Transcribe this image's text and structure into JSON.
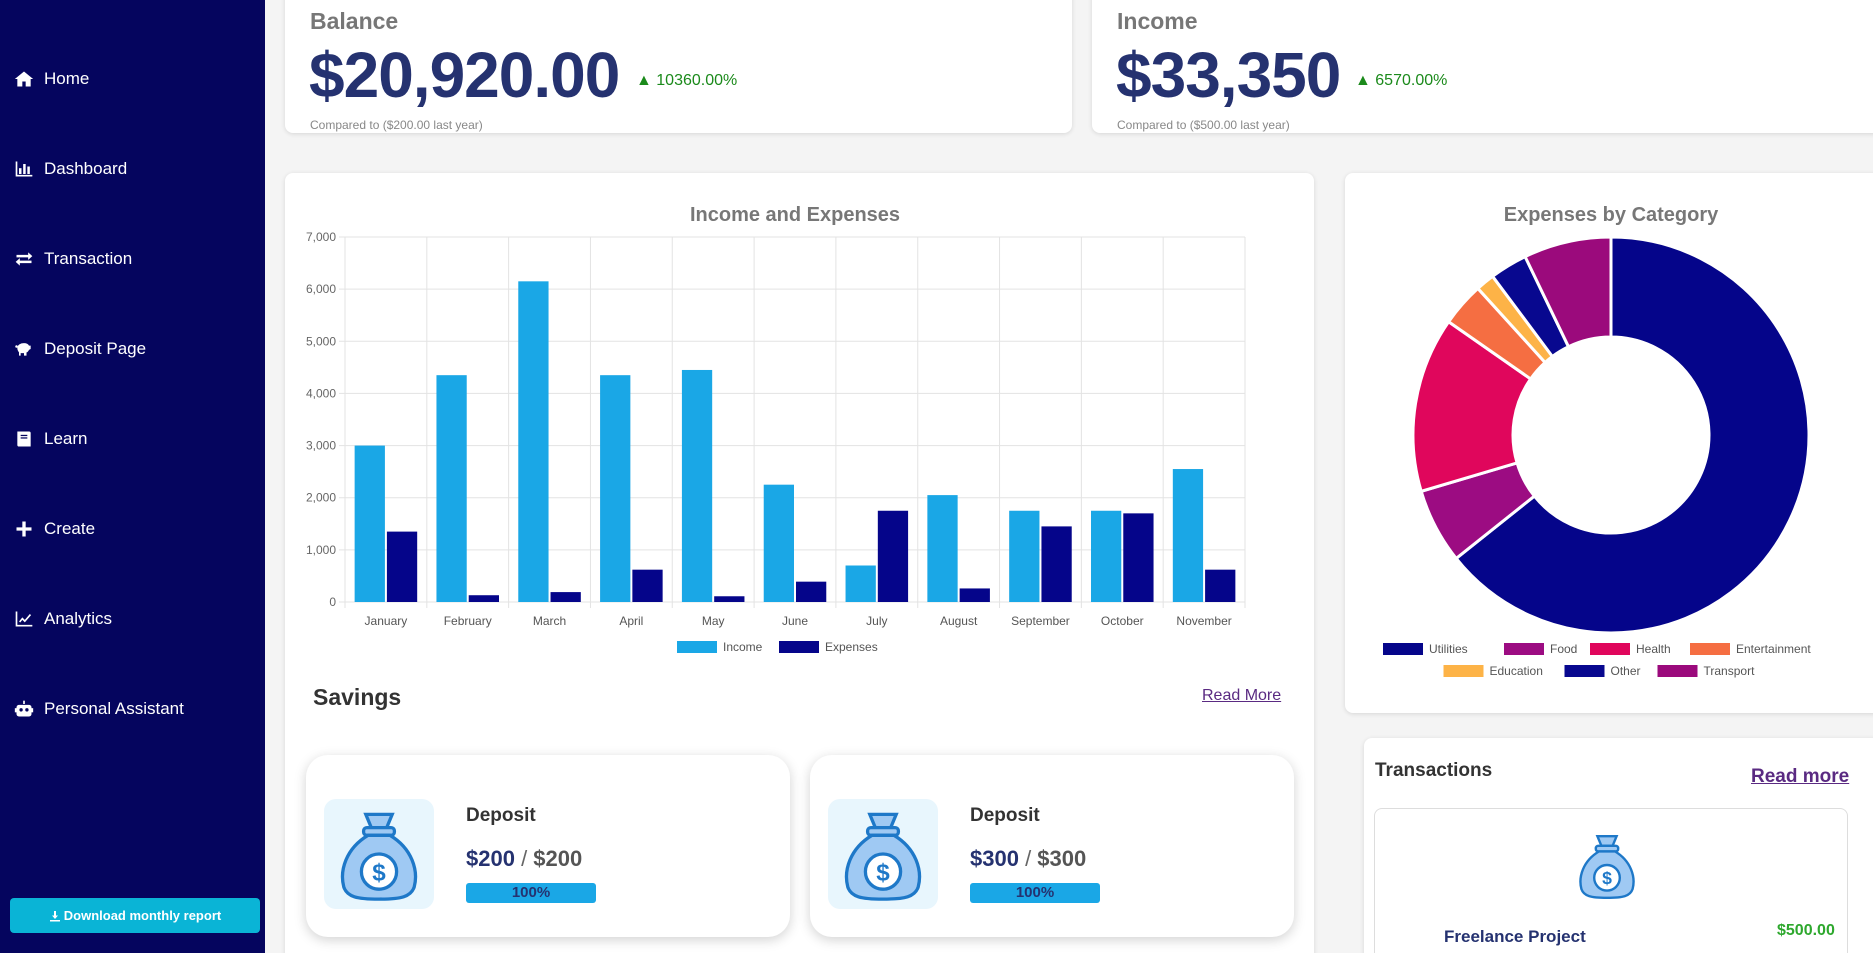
{
  "sidebar": {
    "items": [
      {
        "label": "Home",
        "icon": "home-icon"
      },
      {
        "label": "Dashboard",
        "icon": "bar-chart-icon"
      },
      {
        "label": "Transaction",
        "icon": "exchange-icon"
      },
      {
        "label": "Deposit Page",
        "icon": "piggy-bank-icon"
      },
      {
        "label": "Learn",
        "icon": "book-icon"
      },
      {
        "label": "Create",
        "icon": "plus-icon"
      },
      {
        "label": "Analytics",
        "icon": "line-chart-icon"
      },
      {
        "label": "Personal Assistant",
        "icon": "robot-icon"
      }
    ],
    "download_label": "Download monthly report"
  },
  "kpis": [
    {
      "title": "Balance",
      "value": "$20,920.00",
      "change": "▲ 10360.00%",
      "note": "Compared to ($200.00 last year)"
    },
    {
      "title": "Income",
      "value": "$33,350",
      "change": "▲ 6570.00%",
      "note": "Compared to ($500.00 last year)"
    }
  ],
  "chart_data": [
    {
      "type": "bar",
      "title": "Income and Expenses",
      "categories": [
        "January",
        "February",
        "March",
        "April",
        "May",
        "June",
        "July",
        "August",
        "September",
        "October",
        "November"
      ],
      "series": [
        {
          "name": "Income",
          "color": "#1aa7e6",
          "values": [
            3000,
            4350,
            6150,
            4350,
            4450,
            2250,
            700,
            2050,
            1750,
            1750,
            2550
          ]
        },
        {
          "name": "Expenses",
          "color": "#05058a",
          "values": [
            1350,
            130,
            190,
            620,
            110,
            390,
            1750,
            260,
            1450,
            1700,
            620
          ]
        }
      ],
      "ylim": [
        0,
        7000
      ],
      "yticks": [
        "0",
        "1,000",
        "2,000",
        "3,000",
        "4,000",
        "5,000",
        "6,000",
        "7,000"
      ],
      "grid": true,
      "legend": "bottom"
    },
    {
      "type": "pie",
      "title": "Expenses by Category",
      "labels": [
        "Utilities",
        "Food",
        "Health",
        "Entertainment",
        "Education",
        "Other",
        "Transport"
      ],
      "values": [
        63,
        6,
        14,
        3.5,
        1.5,
        3,
        7
      ],
      "colors": [
        "#05058a",
        "#9c0c82",
        "#e0065c",
        "#f56e42",
        "#fdb347",
        "#08088f",
        "#9b0a7c"
      ],
      "legend": "bottom"
    }
  ],
  "savings": {
    "title": "Savings",
    "read_more": "Read More",
    "items": [
      {
        "label": "Deposit",
        "saved": "$200",
        "sep": " / ",
        "target": "$200",
        "progress_text": "100%",
        "progress": 1.0
      },
      {
        "label": "Deposit",
        "saved": "$300",
        "sep": " / ",
        "target": "$300",
        "progress_text": "100%",
        "progress": 1.0
      }
    ]
  },
  "transactions": {
    "title": "Transactions",
    "read_more": "Read more",
    "items": [
      {
        "name": "Freelance Project",
        "amount": "$500.00",
        "icon": "money-bag-icon"
      }
    ]
  },
  "colors": {
    "sidebar": "#05055e",
    "accent": "#0ab4d6",
    "kpi_value": "#253270",
    "positive": "#1b8a1b"
  }
}
